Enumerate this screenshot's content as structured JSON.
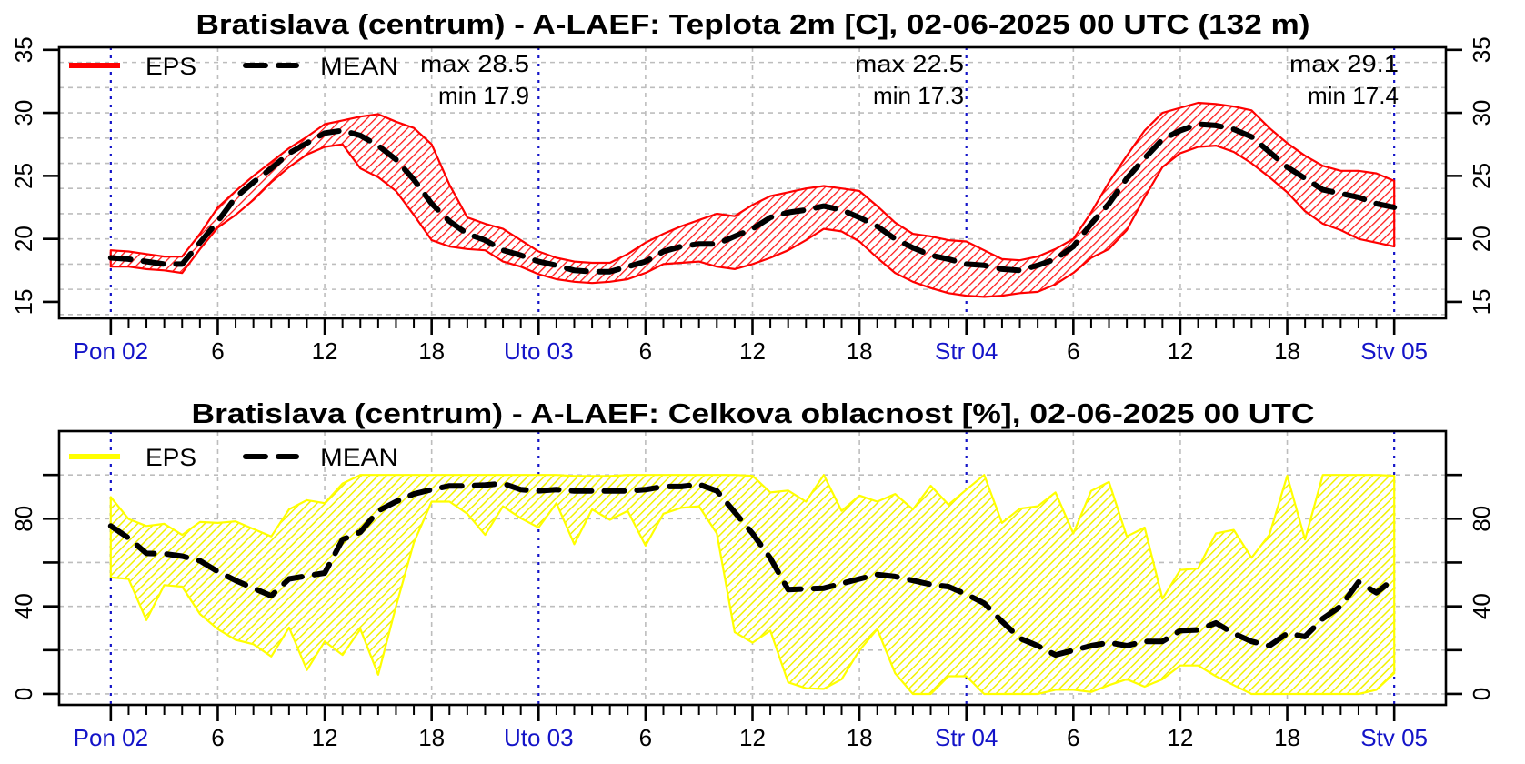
{
  "chart_data": [
    {
      "type": "area",
      "title": "Bratislava (centrum) - A-LAEF: Teplota 2m [C], 02-06-2025 00 UTC (132 m)",
      "xlabel": "",
      "ylabel": "",
      "x_unit": "hours since 02-06-2025 00 UTC",
      "x": [
        0,
        1,
        2,
        3,
        4,
        5,
        6,
        7,
        8,
        9,
        10,
        11,
        12,
        13,
        14,
        15,
        16,
        17,
        18,
        19,
        20,
        21,
        22,
        23,
        24,
        25,
        26,
        27,
        28,
        29,
        30,
        31,
        32,
        33,
        34,
        35,
        36,
        37,
        38,
        39,
        40,
        41,
        42,
        43,
        44,
        45,
        46,
        47,
        48,
        49,
        50,
        51,
        52,
        53,
        54,
        55,
        56,
        57,
        58,
        59,
        60,
        61,
        62,
        63,
        64,
        65,
        66,
        67,
        68,
        69,
        70,
        71,
        72
      ],
      "xlim": [
        -2.9,
        74.9
      ],
      "ylim": [
        13.7,
        35.2
      ],
      "yticks": [
        "15",
        "20",
        "25",
        "30",
        "35"
      ],
      "ytick_values": [
        15,
        20,
        25,
        30,
        35
      ],
      "ygrid_values": [
        14,
        16,
        18,
        20,
        22,
        24,
        26,
        28,
        30,
        32,
        34
      ],
      "xticks": [
        {
          "h": 0,
          "label": "Pon 02",
          "day": true
        },
        {
          "h": 6,
          "label": "6",
          "day": false
        },
        {
          "h": 12,
          "label": "12",
          "day": false
        },
        {
          "h": 18,
          "label": "18",
          "day": false
        },
        {
          "h": 24,
          "label": "Uto 03",
          "day": true
        },
        {
          "h": 30,
          "label": "6",
          "day": false
        },
        {
          "h": 36,
          "label": "12",
          "day": false
        },
        {
          "h": 42,
          "label": "18",
          "day": false
        },
        {
          "h": 48,
          "label": "Str 04",
          "day": true
        },
        {
          "h": 54,
          "label": "6",
          "day": false
        },
        {
          "h": 60,
          "label": "12",
          "day": false
        },
        {
          "h": 66,
          "label": "18",
          "day": false
        },
        {
          "h": 72,
          "label": "Stv 05",
          "day": true
        }
      ],
      "grid": true,
      "legend": {
        "position": "top-left",
        "entries": [
          "EPS",
          "MEAN"
        ]
      },
      "series": [
        {
          "name": "EPS",
          "kind": "band",
          "color": "#ff0000",
          "upper": [
            19.1,
            19.0,
            18.8,
            18.6,
            18.6,
            20.4,
            22.5,
            23.8,
            25.0,
            26.1,
            27.2,
            28.1,
            29.1,
            29.4,
            29.7,
            29.9,
            29.3,
            28.8,
            27.5,
            24.3,
            21.7,
            21.2,
            20.8,
            19.9,
            19.0,
            18.5,
            18.2,
            18.1,
            18.1,
            18.8,
            19.7,
            20.4,
            21.0,
            21.5,
            22.0,
            21.8,
            22.7,
            23.4,
            23.7,
            24.0,
            24.2,
            24.0,
            23.8,
            22.6,
            21.3,
            20.4,
            20.2,
            19.9,
            19.8,
            19.1,
            18.4,
            18.3,
            18.6,
            19.2,
            20.0,
            22.1,
            24.5,
            26.6,
            28.6,
            30.0,
            30.4,
            30.8,
            30.7,
            30.5,
            30.2,
            28.8,
            27.6,
            26.6,
            25.8,
            25.4,
            25.4,
            25.2,
            24.6
          ],
          "lower": [
            17.8,
            17.8,
            17.6,
            17.5,
            17.3,
            19.2,
            20.9,
            21.9,
            23.1,
            24.5,
            25.7,
            26.7,
            27.3,
            27.5,
            25.6,
            24.9,
            23.8,
            21.9,
            19.9,
            19.4,
            19.2,
            19.1,
            18.2,
            17.8,
            17.2,
            16.8,
            16.6,
            16.5,
            16.6,
            16.8,
            17.3,
            18.0,
            18.1,
            18.2,
            17.8,
            17.6,
            18.0,
            18.5,
            19.1,
            19.9,
            20.8,
            20.6,
            19.8,
            18.5,
            17.3,
            16.6,
            16.1,
            15.7,
            15.5,
            15.4,
            15.5,
            15.7,
            15.8,
            16.4,
            17.3,
            18.5,
            19.2,
            20.7,
            23.3,
            25.7,
            26.8,
            27.3,
            27.4,
            26.9,
            26.0,
            24.9,
            23.7,
            22.2,
            21.2,
            20.7,
            20.0,
            19.7,
            19.4
          ]
        },
        {
          "name": "MEAN",
          "kind": "line",
          "color": "#000000",
          "values": [
            18.5,
            18.4,
            18.2,
            18.0,
            18.0,
            19.7,
            21.4,
            23.3,
            24.5,
            25.6,
            26.8,
            27.6,
            28.4,
            28.6,
            28.2,
            27.4,
            26.3,
            24.7,
            22.8,
            21.4,
            20.4,
            19.9,
            19.1,
            18.7,
            18.2,
            17.9,
            17.5,
            17.4,
            17.4,
            17.8,
            18.2,
            19.0,
            19.4,
            19.6,
            19.6,
            20.2,
            20.8,
            21.7,
            22.1,
            22.3,
            22.6,
            22.3,
            21.7,
            21.0,
            20.0,
            19.3,
            18.7,
            18.4,
            18.0,
            17.9,
            17.6,
            17.5,
            17.9,
            18.4,
            19.4,
            21.2,
            22.8,
            24.8,
            26.4,
            27.9,
            28.6,
            29.1,
            29.0,
            28.7,
            28.1,
            26.9,
            25.7,
            24.8,
            23.9,
            23.6,
            23.3,
            22.8,
            22.5
          ]
        }
      ],
      "annotations": [
        {
          "day": "Pon 02",
          "max": "max 28.5",
          "min": "min 17.9",
          "anchor_h": 24
        },
        {
          "day": "Uto 03",
          "max": "max 22.5",
          "min": "min 17.3",
          "anchor_h": 48
        },
        {
          "day": "Str 04",
          "max": "max 29.1",
          "min": "min 17.4",
          "anchor_h": 72
        }
      ]
    },
    {
      "type": "area",
      "title": "Bratislava (centrum) - A-LAEF: Celkova oblacnost [%], 02-06-2025 00 UTC",
      "xlabel": "",
      "ylabel": "",
      "x_unit": "hours since 02-06-2025 00 UTC",
      "x": [
        0,
        1,
        2,
        3,
        4,
        5,
        6,
        7,
        8,
        9,
        10,
        11,
        12,
        13,
        14,
        15,
        16,
        17,
        18,
        19,
        20,
        21,
        22,
        23,
        24,
        25,
        26,
        27,
        28,
        29,
        30,
        31,
        32,
        33,
        34,
        35,
        36,
        37,
        38,
        39,
        40,
        41,
        42,
        43,
        44,
        45,
        46,
        47,
        48,
        49,
        50,
        51,
        52,
        53,
        54,
        55,
        56,
        57,
        58,
        59,
        60,
        61,
        62,
        63,
        64,
        65,
        66,
        67,
        68,
        69,
        70,
        71,
        72
      ],
      "xlim": [
        -2.9,
        74.9
      ],
      "ylim": [
        -5,
        120
      ],
      "yticks": [
        "0",
        "40",
        "80"
      ],
      "ytick_values": [
        0,
        40,
        80
      ],
      "ytick_marks": [
        0,
        20,
        40,
        60,
        80,
        100
      ],
      "ygrid_values": [
        0,
        20,
        40,
        60,
        80,
        100
      ],
      "xticks": [
        {
          "h": 0,
          "label": "Pon 02",
          "day": true
        },
        {
          "h": 6,
          "label": "6",
          "day": false
        },
        {
          "h": 12,
          "label": "12",
          "day": false
        },
        {
          "h": 18,
          "label": "18",
          "day": false
        },
        {
          "h": 24,
          "label": "Uto 03",
          "day": true
        },
        {
          "h": 30,
          "label": "6",
          "day": false
        },
        {
          "h": 36,
          "label": "12",
          "day": false
        },
        {
          "h": 42,
          "label": "18",
          "day": false
        },
        {
          "h": 48,
          "label": "Str 04",
          "day": true
        },
        {
          "h": 54,
          "label": "6",
          "day": false
        },
        {
          "h": 60,
          "label": "12",
          "day": false
        },
        {
          "h": 66,
          "label": "18",
          "day": false
        },
        {
          "h": 72,
          "label": "Stv 05",
          "day": true
        }
      ],
      "grid": true,
      "legend": {
        "position": "top-left",
        "entries": [
          "EPS",
          "MEAN"
        ]
      },
      "series": [
        {
          "name": "EPS",
          "kind": "band",
          "color": "#ffff00",
          "upper": [
            89.9,
            79.9,
            76.7,
            77.7,
            72.6,
            78.5,
            78.1,
            78.8,
            75.3,
            71.9,
            84.3,
            88.5,
            87.1,
            96.1,
            100,
            100,
            100,
            100,
            100,
            100,
            100,
            100,
            100,
            100,
            100,
            100,
            99.5,
            99.5,
            99.5,
            100,
            100,
            100,
            100,
            100,
            100,
            100,
            99.6,
            92.0,
            92.9,
            87.8,
            100,
            83.6,
            90.6,
            87.8,
            91.3,
            84.3,
            95.1,
            86.4,
            93.3,
            100,
            78.1,
            84.6,
            85.7,
            92.0,
            73.3,
            92.7,
            96.8,
            71.9,
            76.0,
            43.5,
            56.6,
            57.3,
            73.3,
            74.9,
            62.2,
            72.6,
            99.6,
            70.5,
            100,
            100,
            100,
            100,
            99.6
          ],
          "lower": [
            53.2,
            52.5,
            33.7,
            49.7,
            49.0,
            36.5,
            29.6,
            24.7,
            22.7,
            17.1,
            30.3,
            10.9,
            24.0,
            17.8,
            29.6,
            8.8,
            40.0,
            69.1,
            87.8,
            87.8,
            82.3,
            72.6,
            85.7,
            80.2,
            76.0,
            87.1,
            68.4,
            84.3,
            79.5,
            83.6,
            67.7,
            82.3,
            85.0,
            85.7,
            73.3,
            28.2,
            23.4,
            28.9,
            5.3,
            2.6,
            2.3,
            6.7,
            19.9,
            29.6,
            9.5,
            0,
            0,
            8.1,
            8.1,
            0,
            0,
            0,
            0,
            1.9,
            1.9,
            0.9,
            4.0,
            6.7,
            3.3,
            6.7,
            13.0,
            13.0,
            8.1,
            4.0,
            0,
            0,
            0,
            0,
            0,
            0,
            0,
            1.9,
            9.5
          ]
        },
        {
          "name": "MEAN",
          "kind": "line",
          "color": "#000000",
          "values": [
            76.7,
            71.2,
            64.2,
            64.0,
            62.9,
            60.8,
            55.9,
            51.8,
            48.3,
            44.8,
            52.5,
            53.9,
            55.2,
            70.5,
            73.9,
            83.6,
            87.8,
            91.3,
            93.3,
            95.0,
            95.0,
            95.4,
            96.1,
            93.3,
            92.7,
            93.3,
            92.7,
            92.7,
            92.7,
            92.7,
            93.3,
            94.7,
            94.7,
            95.7,
            92.7,
            83.0,
            73.3,
            62.0,
            47.6,
            48.0,
            48.3,
            50.4,
            52.5,
            54.5,
            53.6,
            51.8,
            50.0,
            49.0,
            45.5,
            41.4,
            33.1,
            25.4,
            22.0,
            17.8,
            19.9,
            22.0,
            23.4,
            22.0,
            24.0,
            24.0,
            28.9,
            29.2,
            32.4,
            27.6,
            24.0,
            22.0,
            27.6,
            26.2,
            34.4,
            40.0,
            51.1,
            46.2,
            52.7
          ]
        }
      ]
    }
  ]
}
